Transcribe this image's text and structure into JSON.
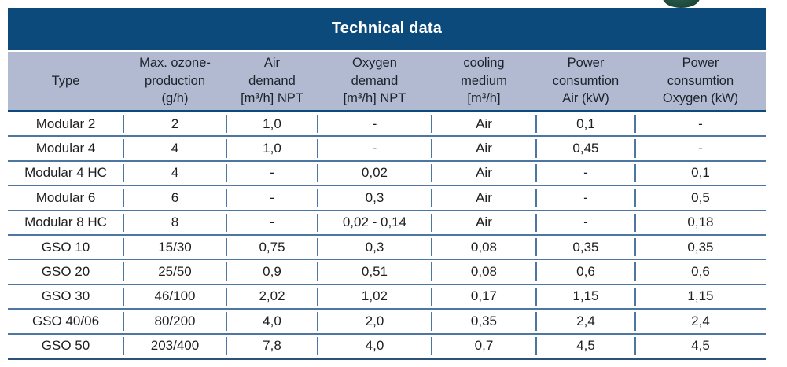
{
  "title_bar": {
    "title": "Technical data"
  },
  "colors": {
    "navy": "#0d4a7c",
    "header_bg": "#b1bad1",
    "line": "#4d77a1",
    "text": "#1e1e1e",
    "green": "#1e4c3f"
  },
  "columns": [
    {
      "id": "type",
      "lines": [
        "Type"
      ]
    },
    {
      "id": "ozone-production",
      "lines": [
        "Max. ozone-",
        "production",
        "(g/h)"
      ]
    },
    {
      "id": "air-demand",
      "lines": [
        "Air",
        "demand",
        "[m³/h] NPT"
      ]
    },
    {
      "id": "oxygen-demand",
      "lines": [
        "Oxygen",
        "demand",
        "[m³/h] NPT"
      ]
    },
    {
      "id": "cooling-medium",
      "lines": [
        "cooling",
        "medium",
        "[m³/h]"
      ]
    },
    {
      "id": "power-air",
      "lines": [
        "Power",
        "consumtion",
        "Air (kW)"
      ]
    },
    {
      "id": "power-oxygen",
      "lines": [
        "Power",
        "consumtion",
        "Oxygen (kW)"
      ]
    }
  ],
  "rows": [
    [
      "Modular 2",
      "2",
      "1,0",
      "-",
      "Air",
      "0,1",
      "-"
    ],
    [
      "Modular 4",
      "4",
      "1,0",
      "-",
      "Air",
      "0,45",
      "-"
    ],
    [
      "Modular 4 HC",
      "4",
      "-",
      "0,02",
      "Air",
      "-",
      "0,1"
    ],
    [
      "Modular 6",
      "6",
      "-",
      "0,3",
      "Air",
      "-",
      "0,5"
    ],
    [
      "Modular 8 HC",
      "8",
      "-",
      "0,02 - 0,14",
      "Air",
      "-",
      "0,18"
    ],
    [
      "GSO 10",
      "15/30",
      "0,75",
      "0,3",
      "0,08",
      "0,35",
      "0,35"
    ],
    [
      "GSO 20",
      "25/50",
      "0,9",
      "0,51",
      "0,08",
      "0,6",
      "0,6"
    ],
    [
      "GSO 30",
      "46/100",
      "2,02",
      "1,02",
      "0,17",
      "1,15",
      "1,15"
    ],
    [
      "GSO 40/06",
      "80/200",
      "4,0",
      "2,0",
      "0,35",
      "2,4",
      "2,4"
    ],
    [
      "GSO 50",
      "203/400",
      "7,8",
      "4,0",
      "0,7",
      "4,5",
      "4,5"
    ]
  ]
}
